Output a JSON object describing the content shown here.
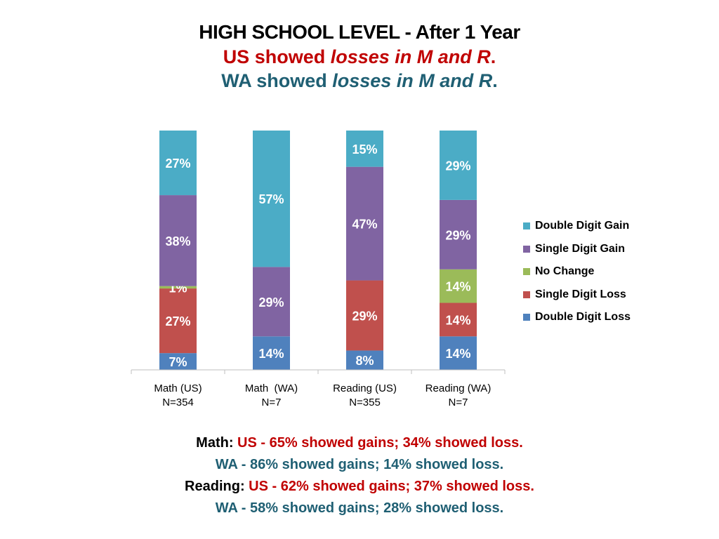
{
  "title": {
    "main": "HIGH SCHOOL LEVEL - After 1 Year",
    "line2_prefix": "US showed ",
    "line2_italic": "losses in M and R",
    "line2_suffix": ".",
    "line3_prefix": "WA showed ",
    "line3_italic": "losses in M and R",
    "line3_suffix": "."
  },
  "colors": {
    "double_digit_gain": "#4bacc6",
    "single_digit_gain": "#8064a2",
    "no_change": "#9bbb59",
    "single_digit_loss": "#c0504d",
    "double_digit_loss": "#4f81bd",
    "red_text": "#c00000",
    "teal_text": "#1f5f73"
  },
  "chart_data": {
    "type": "bar",
    "stacked": true,
    "percent_stacked": true,
    "categories": [
      "Math (US)\nN=354",
      "Math  (WA)\nN=7",
      "Reading (US)\nN=355",
      "Reading (WA)\nN=7"
    ],
    "series": [
      {
        "name": "Double Digit Loss",
        "values": [
          7,
          14,
          8,
          14
        ],
        "labels": [
          "7%",
          "14%",
          "8%",
          "14%"
        ]
      },
      {
        "name": "Single Digit Loss",
        "values": [
          27,
          0,
          29,
          14
        ],
        "labels": [
          "27%",
          "",
          "29%",
          "14%"
        ]
      },
      {
        "name": "No Change",
        "values": [
          1,
          0,
          0,
          14
        ],
        "labels": [
          "1%",
          "",
          "",
          "14%"
        ]
      },
      {
        "name": "Single Digit Gain",
        "values": [
          38,
          29,
          47,
          29
        ],
        "labels": [
          "38%",
          "29%",
          "47%",
          "29%"
        ]
      },
      {
        "name": "Double Digit Gain",
        "values": [
          27,
          57,
          15,
          29
        ],
        "labels": [
          "27%",
          "57%",
          "15%",
          "29%"
        ]
      }
    ],
    "legend": [
      "Double Digit Gain",
      "Single Digit Gain",
      "No Change",
      "Single Digit Loss",
      "Double Digit Loss"
    ],
    "legend_position": "right",
    "ylim": [
      0,
      100
    ],
    "grid": false
  },
  "summary": {
    "math_label": "Math: ",
    "math_us": "US - 65% showed gains; 34% showed loss.",
    "math_wa": "WA - 86% showed gains; 14% showed loss.",
    "reading_label": "Reading: ",
    "reading_us": "US - 62% showed gains; 37% showed loss.",
    "reading_wa": "WA - 58% showed gains; 28% showed loss."
  }
}
